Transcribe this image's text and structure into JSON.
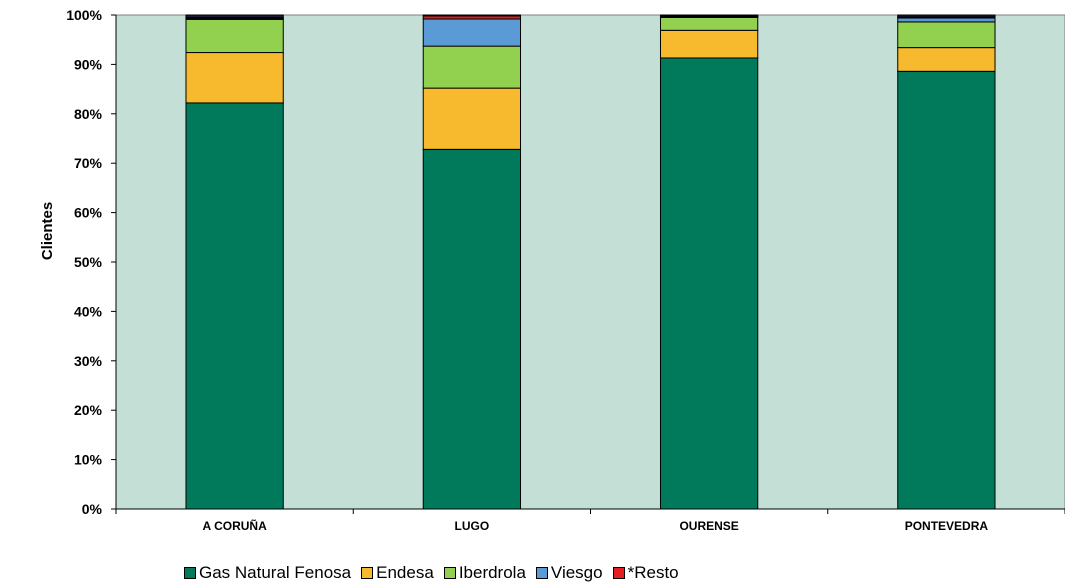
{
  "chart_data": {
    "type": "bar",
    "stacked": true,
    "percent": true,
    "title": "",
    "xlabel": "",
    "ylabel": "Clientes",
    "ylim": [
      0,
      100
    ],
    "yticks": [
      "0%",
      "10%",
      "20%",
      "30%",
      "40%",
      "50%",
      "60%",
      "70%",
      "80%",
      "90%",
      "100%"
    ],
    "categories": [
      "A CORUÑA",
      "LUGO",
      "OURENSE",
      "PONTEVEDRA"
    ],
    "series": [
      {
        "name": "Gas Natural Fenosa",
        "color": "#007A5A",
        "values": [
          82.2,
          72.8,
          91.3,
          88.6
        ]
      },
      {
        "name": "Endesa",
        "color": "#F7B92D",
        "values": [
          10.2,
          12.4,
          5.6,
          4.8
        ]
      },
      {
        "name": "Iberdrola",
        "color": "#92D050",
        "values": [
          6.7,
          8.5,
          2.6,
          5.2
        ]
      },
      {
        "name": "Viesgo",
        "color": "#5B9BD5",
        "values": [
          0.2,
          5.5,
          0.2,
          0.8
        ]
      },
      {
        "name": "*Resto",
        "color": "#E31E1E",
        "values": [
          0.2,
          0.6,
          0.1,
          0.2
        ]
      },
      {
        "name": "",
        "color": "#1C1C3A",
        "values": [
          0.5,
          0.2,
          0.2,
          0.4
        ]
      }
    ],
    "legend_position": "bottom",
    "plot_background": "#C3DFD6",
    "grid": false
  }
}
